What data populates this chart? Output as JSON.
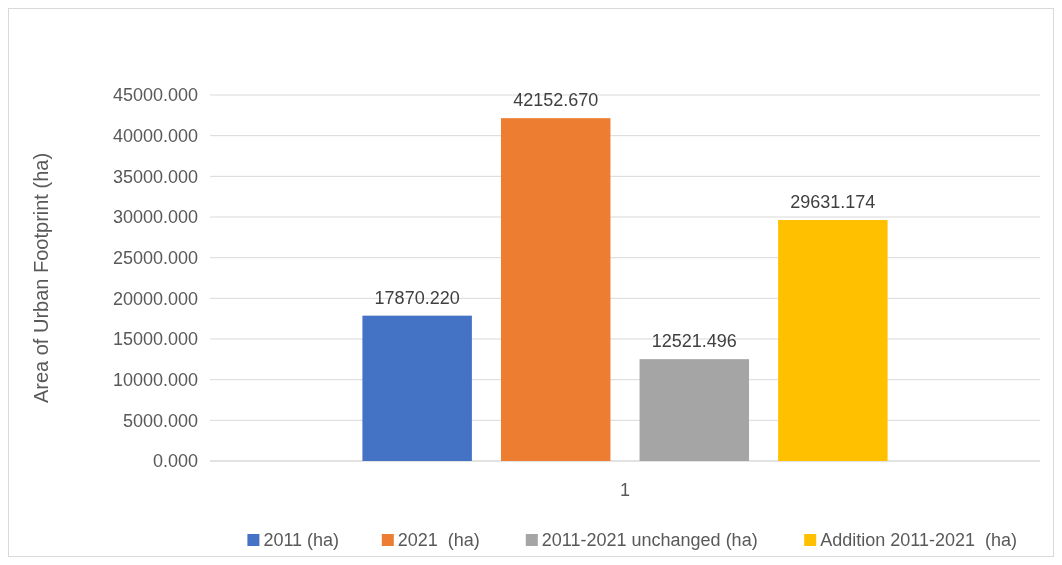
{
  "chart_data": {
    "type": "bar",
    "ylabel": "Area of Urban Footprint (ha)",
    "categories": [
      "1"
    ],
    "series": [
      {
        "name": "2011 (ha)",
        "color": "#4472c4",
        "values": [
          17870.22
        ],
        "value_labels": [
          "17870.220"
        ]
      },
      {
        "name": "2021  (ha)",
        "color": "#ed7d31",
        "values": [
          42152.67
        ],
        "value_labels": [
          "42152.670"
        ]
      },
      {
        "name": "2011-2021 unchanged (ha)",
        "color": "#a5a5a5",
        "values": [
          12521.496
        ],
        "value_labels": [
          "12521.496"
        ]
      },
      {
        "name": "Addition 2011-2021  (ha)",
        "color": "#ffc000",
        "values": [
          29631.174
        ],
        "value_labels": [
          "29631.174"
        ]
      }
    ],
    "ylim": [
      0,
      45000
    ],
    "yticks": [
      {
        "value": 0,
        "label": "0.000"
      },
      {
        "value": 5000,
        "label": "5000.000"
      },
      {
        "value": 10000,
        "label": "10000.000"
      },
      {
        "value": 15000,
        "label": "15000.000"
      },
      {
        "value": 20000,
        "label": "20000.000"
      },
      {
        "value": 25000,
        "label": "25000.000"
      },
      {
        "value": 30000,
        "label": "30000.000"
      },
      {
        "value": 35000,
        "label": "35000.000"
      },
      {
        "value": 40000,
        "label": "40000.000"
      },
      {
        "value": 45000,
        "label": "45000.000"
      }
    ],
    "grid": "y",
    "legend": "bottom"
  }
}
